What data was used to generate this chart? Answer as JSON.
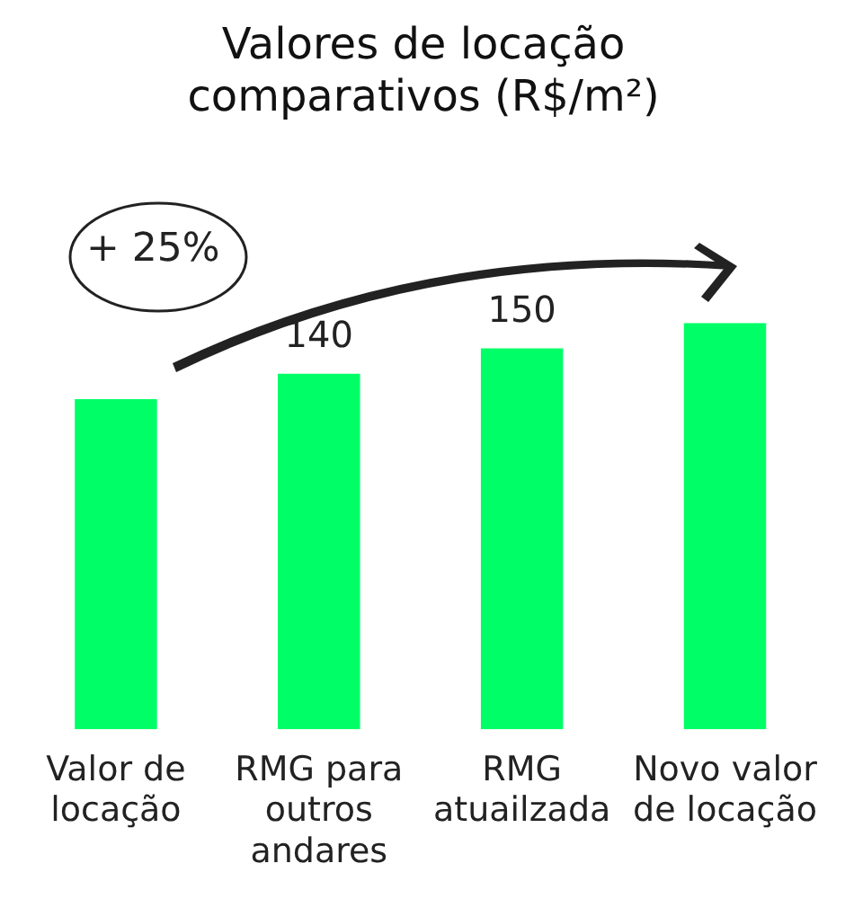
{
  "chart_data": {
    "type": "bar",
    "title": "Valores de locação comparativos (R$/m²)",
    "categories": [
      "Valor de locação",
      "RMG para outros andares",
      "RMG atuailzada",
      "Novo valor de locação"
    ],
    "values": [
      130,
      140,
      150,
      160
    ],
    "value_labels": [
      null,
      "140",
      "150",
      null
    ],
    "color": "#00ff66",
    "annotations": [
      "+ 25%"
    ],
    "tick_labels": "x",
    "grid": false,
    "legend": false
  }
}
